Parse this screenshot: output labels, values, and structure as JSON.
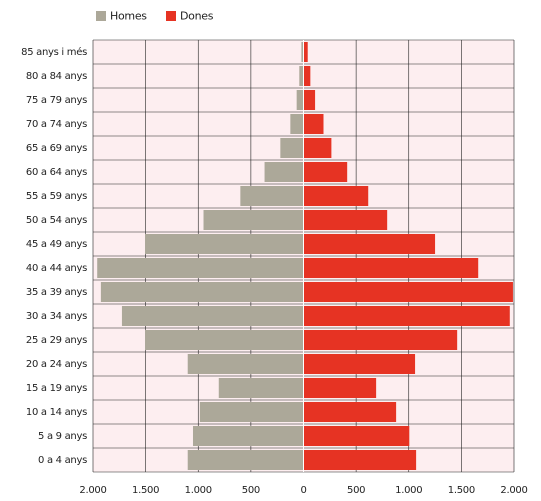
{
  "chart_data": {
    "type": "pyramid",
    "categories": [
      "85 anys i més",
      "80 a 84 anys",
      "75 a 79 anys",
      "70 a 74 anys",
      "65 a 69 anys",
      "60 a 64 anys",
      "55 a 59 anys",
      "50 a  54 anys",
      "45 a 49 anys",
      "40 a 44 anys",
      "35 a 39  anys",
      "30 a 34 anys",
      "25 a  29 anys",
      "20 a 24 anys",
      "15 a 19 anys",
      "10 a 14 anys",
      "5 a 9 anys",
      "0 a 4 anys"
    ],
    "series": [
      {
        "name": "Homes",
        "color": "#aca899",
        "side": "left",
        "values": [
          20,
          40,
          65,
          125,
          220,
          370,
          600,
          950,
          1505,
          1960,
          1925,
          1725,
          1505,
          1100,
          805,
          985,
          1050,
          1100
        ]
      },
      {
        "name": "Dones",
        "color": "#e63323",
        "side": "right",
        "values": [
          40,
          65,
          110,
          190,
          265,
          415,
          615,
          795,
          1250,
          1660,
          1990,
          1960,
          1460,
          1060,
          690,
          880,
          1005,
          1070
        ]
      }
    ],
    "xlim": [
      -2000,
      2000
    ],
    "xticks": [
      {
        "value": -2000,
        "label": "2.000"
      },
      {
        "value": -1500,
        "label": "1.500"
      },
      {
        "value": -1000,
        "label": "1.000"
      },
      {
        "value": -500,
        "label": "500"
      },
      0,
      500,
      {
        "value": 1000,
        "label": "1.000"
      },
      {
        "value": 1500,
        "label": "1.500"
      },
      {
        "value": 2000,
        "label": "2.000"
      }
    ],
    "grid": true
  }
}
